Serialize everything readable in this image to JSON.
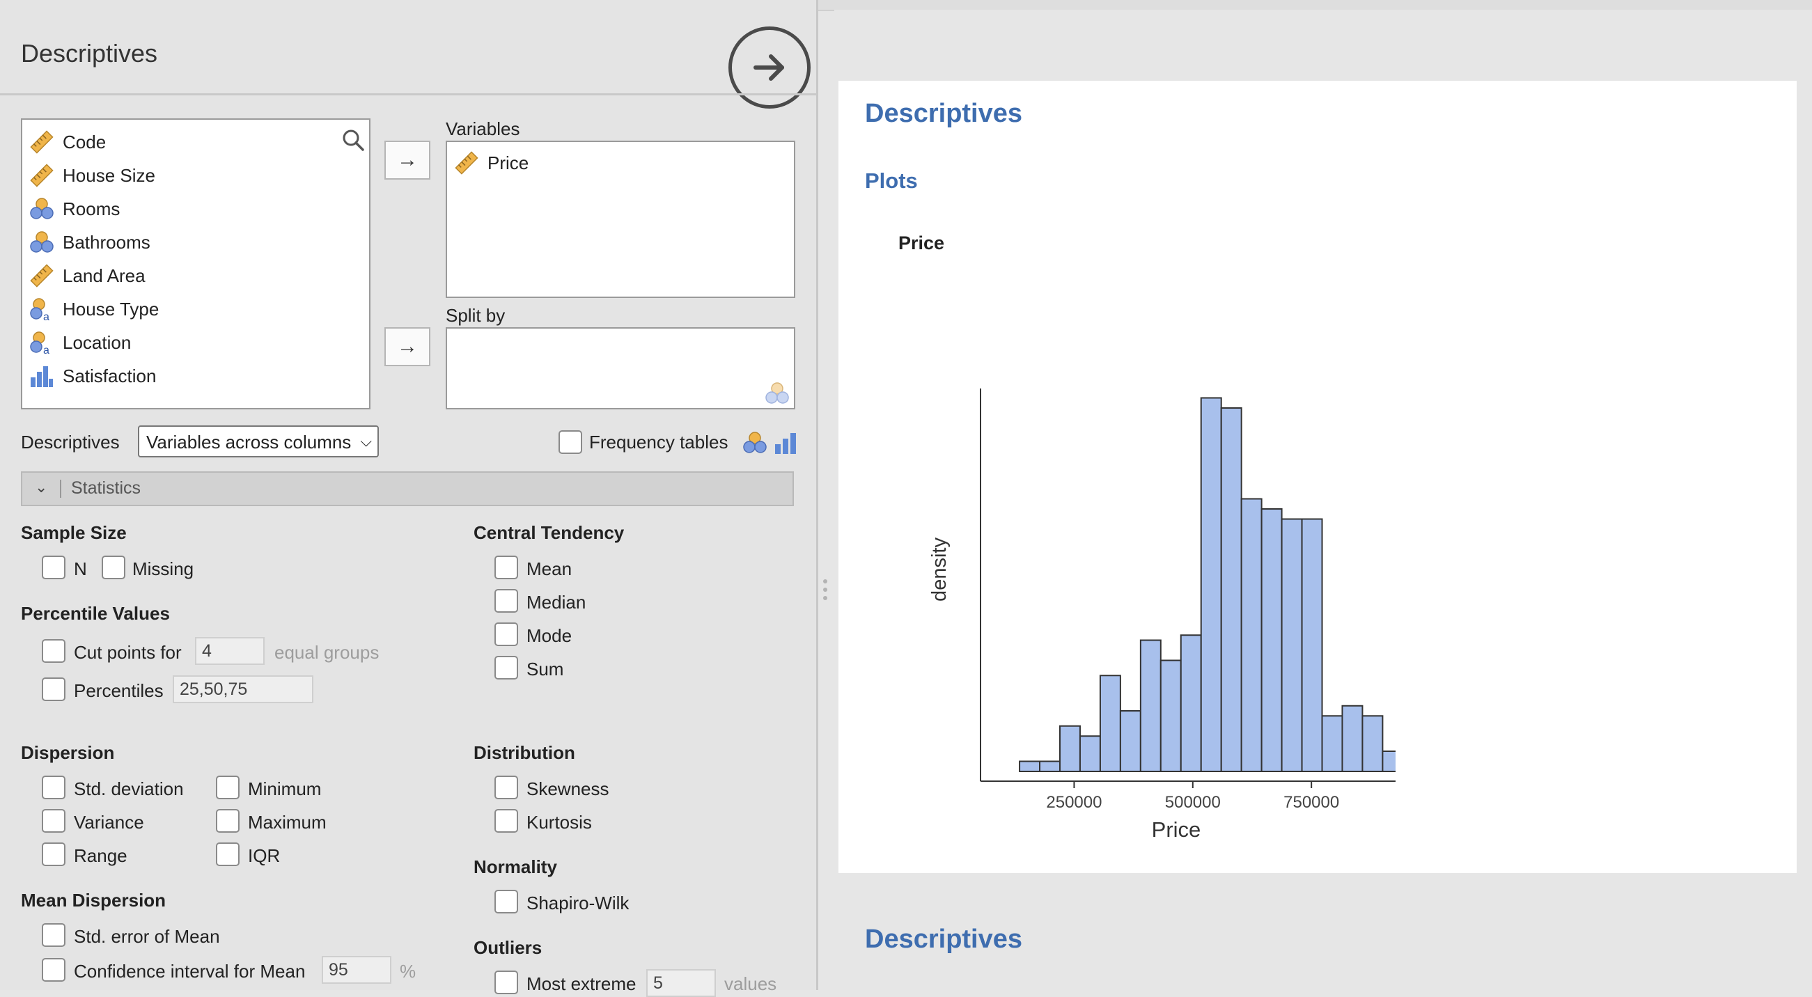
{
  "analysis": {
    "title": "Descriptives",
    "run_icon": "arrow-right-circle-icon"
  },
  "variables_list": {
    "search_icon": "search-icon",
    "items": [
      {
        "label": "Code",
        "icon": "ruler-icon"
      },
      {
        "label": "House Size",
        "icon": "ruler-icon"
      },
      {
        "label": "Rooms",
        "icon": "ordinal-circles-icon"
      },
      {
        "label": "Bathrooms",
        "icon": "ordinal-circles-icon"
      },
      {
        "label": "Land Area",
        "icon": "ruler-icon"
      },
      {
        "label": "House Type",
        "icon": "nominal-text-icon"
      },
      {
        "label": "Location",
        "icon": "nominal-text-icon"
      },
      {
        "label": "Satisfaction",
        "icon": "bar-chart-icon"
      }
    ]
  },
  "targets": {
    "variables_label": "Variables",
    "variables_items": [
      {
        "label": "Price",
        "icon": "ruler-icon"
      }
    ],
    "split_by_label": "Split by",
    "move_arrow": "→"
  },
  "descriptives_row": {
    "label": "Descriptives",
    "layout_value": "Variables across columns",
    "frequency_tables_label": "Frequency tables",
    "frequency_tables_checked": false
  },
  "statistics": {
    "header": "Statistics",
    "sample_size": {
      "title": "Sample Size",
      "n": "N",
      "missing": "Missing"
    },
    "percentile_values": {
      "title": "Percentile Values",
      "cut_points_label": "Cut points for",
      "cut_points_value": "4",
      "equal_groups": "equal groups",
      "percentiles_label": "Percentiles",
      "percentiles_value": "25,50,75"
    },
    "central_tendency": {
      "title": "Central Tendency",
      "mean": "Mean",
      "median": "Median",
      "mode": "Mode",
      "sum": "Sum"
    },
    "dispersion": {
      "title": "Dispersion",
      "std": "Std. deviation",
      "variance": "Variance",
      "range": "Range",
      "minimum": "Minimum",
      "maximum": "Maximum",
      "iqr": "IQR"
    },
    "distribution": {
      "title": "Distribution",
      "skewness": "Skewness",
      "kurtosis": "Kurtosis"
    },
    "normality": {
      "title": "Normality",
      "shapiro": "Shapiro-Wilk"
    },
    "mean_dispersion": {
      "title": "Mean Dispersion",
      "se": "Std. error of Mean",
      "ci_label": "Confidence interval for Mean",
      "ci_value": "95",
      "ci_unit": "%"
    },
    "outliers": {
      "title": "Outliers",
      "most_extreme_label": "Most extreme",
      "most_extreme_value": "5",
      "values_unit": "values"
    }
  },
  "results": {
    "heading": "Descriptives",
    "plots_heading": "Plots",
    "plot_title": "Price",
    "second_heading": "Descriptives"
  },
  "chart_data": {
    "type": "bar",
    "xlabel": "Price",
    "ylabel": "density",
    "x_ticks": [
      250000,
      500000,
      750000
    ],
    "x_tick_labels": [
      "250000",
      "500000",
      "750000"
    ],
    "bin_width": 42500,
    "bins_start": 135000,
    "values": [
      0.02,
      0.02,
      0.09,
      0.07,
      0.19,
      0.12,
      0.26,
      0.22,
      0.27,
      0.74,
      0.72,
      0.54,
      0.52,
      0.5,
      0.5,
      0.11,
      0.13,
      0.11,
      0.04
    ],
    "xlim": [
      85000,
      962500
    ],
    "ylim": [
      0,
      0.8
    ],
    "fill": "#a8c0ec",
    "stroke": "#333333"
  }
}
